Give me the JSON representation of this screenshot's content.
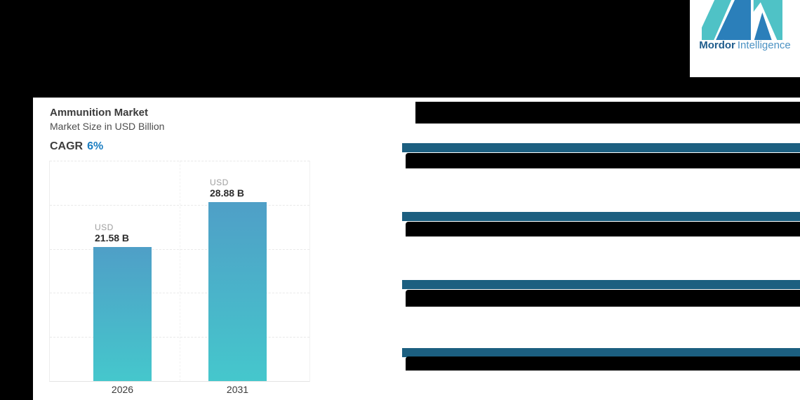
{
  "logo": {
    "brand_bold": "Mordor",
    "brand_light": "Intelligence",
    "teal": "#4FC2C6",
    "blue": "#2B7FBA"
  },
  "card": {
    "title": "Ammunition Market",
    "subtitle": "Market Size in USD Billion",
    "cagr_label": "CAGR",
    "cagr_value": "6%"
  },
  "chart_data": {
    "type": "bar",
    "title": "Ammunition Market",
    "subtitle": "Market Size in USD Billion",
    "categories": [
      "2026",
      "2031"
    ],
    "values": [
      21.58,
      28.88
    ],
    "unit": "USD Billion",
    "bar_value_prefix": "USD",
    "bar_value_labels": [
      "21.58 B",
      "28.88 B"
    ],
    "cagr": "6%",
    "ylim": [
      0,
      35.5
    ],
    "grid": "horizontal-dashed",
    "legend": "none",
    "bar_gradient_top": "#4F9FC7",
    "bar_gradient_bottom": "#45C7CC"
  },
  "snapshot_panel": {
    "divider_color": "#1C5F80",
    "redacted_rows": 4,
    "note": ""
  }
}
